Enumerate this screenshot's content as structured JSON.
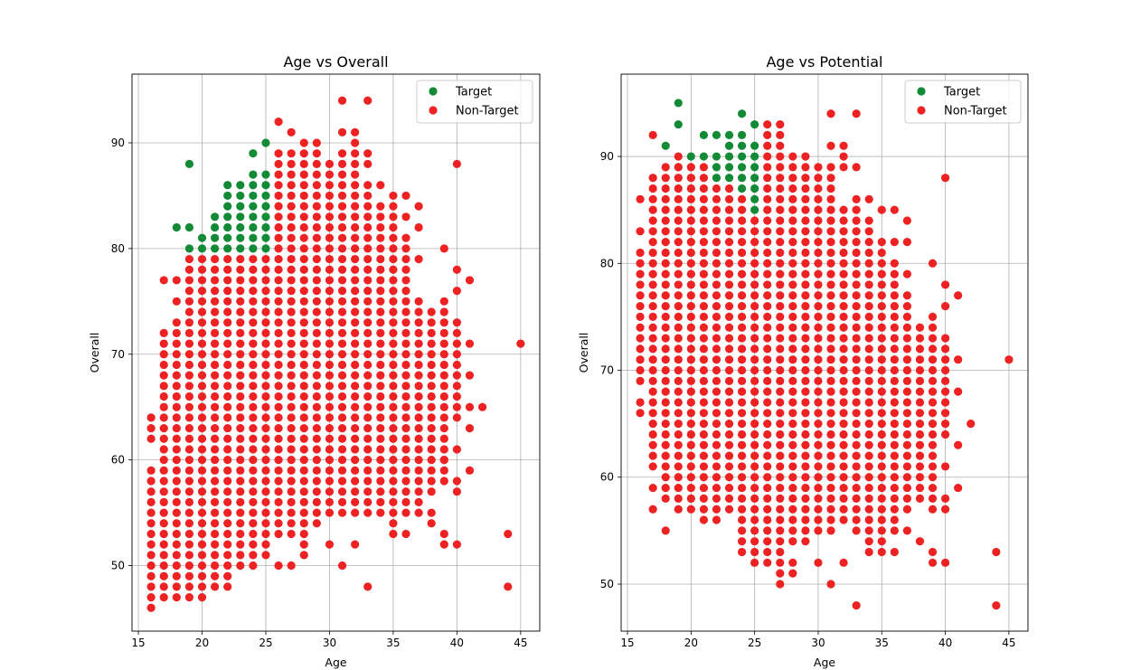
{
  "chart_data": [
    {
      "type": "scatter",
      "title": "Age vs Overall",
      "xlabel": "Age",
      "ylabel": "Overall",
      "xlim": [
        14.5,
        46.5
      ],
      "ylim": [
        43.8,
        96.5
      ],
      "xticks": [
        15,
        20,
        25,
        30,
        35,
        40,
        45
      ],
      "yticks": [
        50,
        60,
        70,
        80,
        90
      ],
      "grid": true,
      "legend_position": "top-right",
      "series": [
        {
          "name": "Target",
          "color": "#138a36",
          "columns": [
            {
              "x": 19,
              "y": [
                80,
                82,
                88
              ]
            },
            {
              "x": 18,
              "y": [
                82
              ]
            },
            {
              "x": 20,
              "y": [
                80,
                81
              ]
            },
            {
              "x": 21,
              "y": [
                80,
                81,
                82,
                83
              ]
            },
            {
              "x": 22,
              "y": [
                80,
                81,
                82,
                83,
                84,
                85,
                86
              ]
            },
            {
              "x": 23,
              "y": [
                80,
                81,
                82,
                83,
                84,
                85,
                86
              ]
            },
            {
              "x": 24,
              "y": [
                80,
                81,
                82,
                83,
                84,
                85,
                86,
                87,
                89
              ]
            },
            {
              "x": 25,
              "y": [
                80,
                81,
                82,
                83,
                84,
                85,
                86,
                87,
                90
              ]
            }
          ]
        },
        {
          "name": "Non-Target",
          "color": "#ee2222",
          "columns": [
            {
              "x": 16,
              "ranges": [
                [
                  46,
                  59
                ],
                [
                  62,
                  64
                ]
              ]
            },
            {
              "x": 17,
              "ranges": [
                [
                  47,
                  72
                ]
              ],
              "extra": [
                77
              ]
            },
            {
              "x": 18,
              "ranges": [
                [
                  47,
                  73
                ]
              ],
              "extra": [
                75,
                77
              ]
            },
            {
              "x": 19,
              "ranges": [
                [
                  47,
                  79
                ]
              ]
            },
            {
              "x": 20,
              "ranges": [
                [
                  47,
                  79
                ]
              ]
            },
            {
              "x": 21,
              "ranges": [
                [
                  48,
                  79
                ]
              ]
            },
            {
              "x": 22,
              "ranges": [
                [
                  48,
                  79
                ]
              ]
            },
            {
              "x": 23,
              "ranges": [
                [
                  50,
                  79
                ]
              ]
            },
            {
              "x": 24,
              "ranges": [
                [
                  50,
                  79
                ]
              ]
            },
            {
              "x": 25,
              "ranges": [
                [
                  51,
                  79
                ]
              ]
            },
            {
              "x": 26,
              "ranges": [
                [
                  53,
                  89
                ]
              ],
              "extra": [
                50,
                92
              ]
            },
            {
              "x": 27,
              "ranges": [
                [
                  53,
                  89
                ]
              ],
              "extra": [
                50,
                91
              ]
            },
            {
              "x": 28,
              "ranges": [
                [
                  53,
                  89
                ]
              ],
              "extra": [
                51,
                52,
                90
              ]
            },
            {
              "x": 29,
              "ranges": [
                [
                  54,
                  89
                ]
              ],
              "extra": [
                90
              ]
            },
            {
              "x": 30,
              "ranges": [
                [
                  55,
                  88
                ]
              ],
              "extra": [
                52
              ]
            },
            {
              "x": 31,
              "ranges": [
                [
                  55,
                  89
                ]
              ],
              "extra": [
                50,
                91,
                94
              ]
            },
            {
              "x": 32,
              "ranges": [
                [
                  55,
                  89
                ]
              ],
              "extra": [
                52,
                90,
                91
              ]
            },
            {
              "x": 33,
              "ranges": [
                [
                  55,
                  86
                ]
              ],
              "extra": [
                48,
                88,
                89,
                94
              ]
            },
            {
              "x": 34,
              "ranges": [
                [
                  55,
                  84
                ]
              ],
              "extra": [
                86
              ]
            },
            {
              "x": 35,
              "ranges": [
                [
                  55,
                  85
                ]
              ],
              "extra": [
                53,
                54
              ]
            },
            {
              "x": 36,
              "ranges": [
                [
                  55,
                  81
                ]
              ],
              "extra": [
                53,
                83,
                85
              ]
            },
            {
              "x": 37,
              "ranges": [
                [
                  55,
                  75
                ]
              ],
              "extra": [
                79,
                82,
                84
              ]
            },
            {
              "x": 38,
              "ranges": [
                [
                  57,
                  74
                ]
              ],
              "extra": [
                54,
                55
              ]
            },
            {
              "x": 39,
              "ranges": [
                [
                  58,
                  74
                ]
              ],
              "extra": [
                52,
                53,
                60,
                75,
                80
              ]
            },
            {
              "x": 40,
              "ranges": [
                [
                  64,
                  73
                ]
              ],
              "extra": [
                52,
                57,
                58,
                61,
                76,
                78,
                88
              ]
            },
            {
              "x": 41,
              "extra": [
                59,
                63,
                65,
                68,
                71,
                77
              ]
            },
            {
              "x": 42,
              "extra": [
                65
              ]
            },
            {
              "x": 44,
              "extra": [
                48,
                53
              ]
            },
            {
              "x": 45,
              "extra": [
                71
              ]
            }
          ]
        }
      ]
    },
    {
      "type": "scatter",
      "title": "Age vs Potential",
      "xlabel": "Age",
      "ylabel": "Overall",
      "xlim": [
        14.5,
        46.5
      ],
      "ylim": [
        45.6,
        97.7
      ],
      "xticks": [
        15,
        20,
        25,
        30,
        35,
        40,
        45
      ],
      "yticks": [
        50,
        60,
        70,
        80,
        90
      ],
      "grid": true,
      "legend_position": "top-right",
      "series": [
        {
          "name": "Target",
          "color": "#138a36",
          "columns": [
            {
              "x": 18,
              "y": [
                91
              ]
            },
            {
              "x": 19,
              "y": [
                89,
                93,
                95
              ]
            },
            {
              "x": 20,
              "y": [
                90
              ]
            },
            {
              "x": 21,
              "y": [
                90,
                92
              ]
            },
            {
              "x": 22,
              "y": [
                88,
                89,
                90,
                92
              ]
            },
            {
              "x": 23,
              "y": [
                88,
                89,
                90,
                91,
                92
              ]
            },
            {
              "x": 24,
              "y": [
                87,
                88,
                89,
                90,
                91,
                92,
                94
              ]
            },
            {
              "x": 25,
              "y": [
                85,
                86,
                87,
                88,
                89,
                90,
                91,
                93
              ]
            }
          ]
        },
        {
          "name": "Non-Target",
          "color": "#ee2222",
          "columns": [
            {
              "x": 16,
              "ranges": [
                [
                  69,
                  81
                ]
              ],
              "extra": [
                66,
                67,
                83,
                86
              ]
            },
            {
              "x": 17,
              "ranges": [
                [
                  61,
                  88
                ]
              ],
              "extra": [
                57,
                59,
                92
              ]
            },
            {
              "x": 18,
              "ranges": [
                [
                  58,
                  89
                ]
              ],
              "extra": [
                55
              ]
            },
            {
              "x": 19,
              "ranges": [
                [
                  57,
                  90
                ]
              ]
            },
            {
              "x": 20,
              "ranges": [
                [
                  57,
                  89
                ]
              ]
            },
            {
              "x": 21,
              "ranges": [
                [
                  56,
                  89
                ]
              ]
            },
            {
              "x": 22,
              "ranges": [
                [
                  56,
                  87
                ]
              ]
            },
            {
              "x": 23,
              "ranges": [
                [
                  57,
                  87
                ]
              ]
            },
            {
              "x": 24,
              "ranges": [
                [
                  53,
                  86
                ]
              ]
            },
            {
              "x": 25,
              "ranges": [
                [
                  52,
                  84
                ]
              ]
            },
            {
              "x": 26,
              "ranges": [
                [
                  52,
                  93
                ]
              ]
            },
            {
              "x": 27,
              "ranges": [
                [
                  52,
                  93
                ]
              ],
              "extra": [
                50,
                51
              ]
            },
            {
              "x": 28,
              "ranges": [
                [
                  54,
                  90
                ]
              ],
              "extra": [
                51,
                52
              ]
            },
            {
              "x": 29,
              "ranges": [
                [
                  54,
                  90
                ]
              ]
            },
            {
              "x": 30,
              "ranges": [
                [
                  55,
                  89
                ]
              ],
              "extra": [
                52
              ]
            },
            {
              "x": 31,
              "ranges": [
                [
                  55,
                  89
                ]
              ],
              "extra": [
                50,
                91,
                94
              ]
            },
            {
              "x": 32,
              "ranges": [
                [
                  56,
                  85
                ]
              ],
              "extra": [
                52,
                89,
                90,
                91
              ]
            },
            {
              "x": 33,
              "ranges": [
                [
                  55,
                  86
                ]
              ],
              "extra": [
                48,
                89,
                94
              ]
            },
            {
              "x": 34,
              "ranges": [
                [
                  53,
                  84
                ]
              ],
              "extra": [
                86
              ]
            },
            {
              "x": 35,
              "ranges": [
                [
                  53,
                  82
                ]
              ],
              "extra": [
                85
              ]
            },
            {
              "x": 36,
              "ranges": [
                [
                  55,
                  80
                ]
              ],
              "extra": [
                53,
                82,
                85
              ]
            },
            {
              "x": 37,
              "ranges": [
                [
                  57,
                  77
                ]
              ],
              "extra": [
                55,
                79,
                82,
                84
              ]
            },
            {
              "x": 38,
              "ranges": [
                [
                  58,
                  74
                ]
              ],
              "extra": [
                54
              ]
            },
            {
              "x": 39,
              "ranges": [
                [
                  57,
                  75
                ]
              ],
              "extra": [
                52,
                53,
                80
              ]
            },
            {
              "x": 40,
              "ranges": [
                [
                  64,
                  73
                ]
              ],
              "extra": [
                52,
                57,
                58,
                61,
                76,
                78,
                88
              ]
            },
            {
              "x": 41,
              "extra": [
                59,
                63,
                68,
                71,
                77
              ]
            },
            {
              "x": 42,
              "extra": [
                65
              ]
            },
            {
              "x": 44,
              "extra": [
                48,
                53
              ]
            },
            {
              "x": 45,
              "extra": [
                71
              ]
            }
          ]
        }
      ]
    }
  ]
}
